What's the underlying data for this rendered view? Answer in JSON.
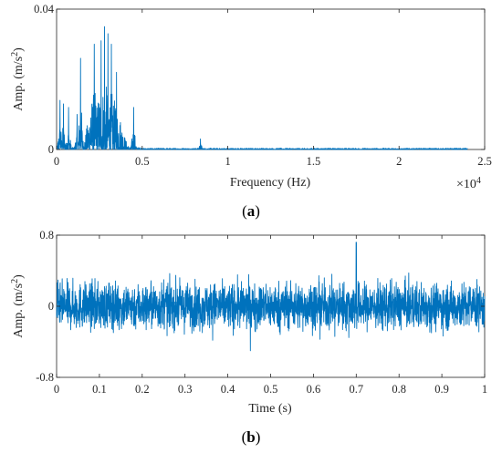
{
  "accent_color": "#0072BD",
  "chart_data": [
    {
      "type": "line",
      "panel_label": "a",
      "xlabel": "Frequency (Hz)",
      "ylabel": "Amp. (m/s",
      "ylabel_sup": "2",
      "ylabel_close": ")",
      "x_multiplier_base": "×10",
      "x_multiplier_exp": "4",
      "xlim": [
        0,
        2.5
      ],
      "ylim": [
        0,
        0.04
      ],
      "x_ticks": [
        0,
        0.5,
        1,
        1.5,
        2,
        2.5
      ],
      "x_tick_labels": [
        "0",
        "0.5",
        "1",
        "1.5",
        "2",
        "2.5"
      ],
      "y_ticks": [
        0,
        0.04
      ],
      "y_tick_labels": [
        "0",
        "0.04"
      ],
      "grid": false,
      "series": [
        {
          "color": "#0072BD",
          "x_range": [
            0,
            2.4
          ],
          "peaks": [
            {
              "x": 0.02,
              "y": 0.014
            },
            {
              "x": 0.04,
              "y": 0.013
            },
            {
              "x": 0.07,
              "y": 0.012
            },
            {
              "x": 0.12,
              "y": 0.01
            },
            {
              "x": 0.14,
              "y": 0.026
            },
            {
              "x": 0.2,
              "y": 0.009
            },
            {
              "x": 0.22,
              "y": 0.03
            },
            {
              "x": 0.26,
              "y": 0.031
            },
            {
              "x": 0.28,
              "y": 0.035
            },
            {
              "x": 0.3,
              "y": 0.033
            },
            {
              "x": 0.32,
              "y": 0.03
            },
            {
              "x": 0.35,
              "y": 0.022
            },
            {
              "x": 0.45,
              "y": 0.012
            },
            {
              "x": 0.84,
              "y": 0.005
            }
          ]
        }
      ]
    },
    {
      "type": "line",
      "panel_label": "b",
      "xlabel": "Time (s)",
      "ylabel": "Amp. (m/s",
      "ylabel_sup": "2",
      "ylabel_close": ")",
      "xlim": [
        0,
        1
      ],
      "ylim": [
        -0.8,
        0.8
      ],
      "x_ticks": [
        0,
        0.1,
        0.2,
        0.3,
        0.4,
        0.5,
        0.6,
        0.7,
        0.8,
        0.9,
        1
      ],
      "x_tick_labels": [
        "0",
        "0.1",
        "0.2",
        "0.3",
        "0.4",
        "0.5",
        "0.6",
        "0.7",
        "0.8",
        "0.9",
        "1"
      ],
      "y_ticks": [
        -0.8,
        0,
        0.8
      ],
      "y_tick_labels": [
        "-0.8",
        "0",
        "0.8"
      ],
      "grid": false,
      "series": [
        {
          "color": "#0072BD",
          "x_range": [
            0,
            1
          ],
          "typical_amplitude": 0.3,
          "peak_amplitude": [
            -0.5,
            0.72
          ]
        }
      ]
    }
  ]
}
